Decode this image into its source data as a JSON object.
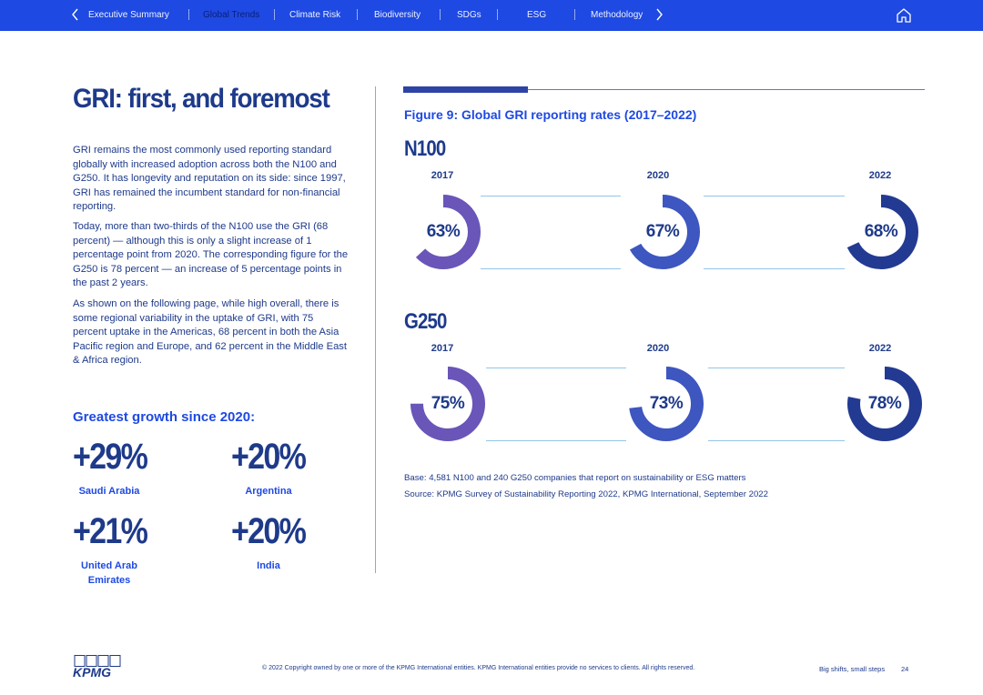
{
  "nav": {
    "items": [
      {
        "label": "Executive Summary"
      },
      {
        "label": "Global Trends",
        "active": true
      },
      {
        "label": "Climate Risk"
      },
      {
        "label": "Biodiversity"
      },
      {
        "label": "SDGs"
      },
      {
        "label": "ESG"
      },
      {
        "label": "Methodology"
      }
    ],
    "bg_color": "#1e49e2"
  },
  "left": {
    "heading": "GRI: first, and foremost",
    "paragraphs": [
      "GRI remains the most commonly used reporting standard globally with increased adoption across both the N100 and G250. It has longevity and reputation on its side: since 1997, GRI has remained the incumbent standard for non-financial reporting.",
      "Today, more than two-thirds of the N100 use the GRI (68 percent) — although this is only a slight increase of 1 percentage point from 2020. The corresponding figure for the G250 is 78 percent — an increase of 5 percentage points in the past 2 years.",
      "As shown on the following page, while high overall, there is some regional variability in the uptake of GRI, with 75 percent uptake in the Americas, 68 percent in both the Asia Pacific region and Europe, and 62 percent in the Middle East & Africa region."
    ],
    "growth_title": "Greatest growth since 2020:",
    "growth": [
      {
        "value": "+29%",
        "label": "Saudi Arabia"
      },
      {
        "value": "+20%",
        "label": "Argentina"
      },
      {
        "value": "+21%",
        "label": "United Arab Emirates"
      },
      {
        "value": "+20%",
        "label": "India"
      }
    ]
  },
  "figure": {
    "title": "Figure 9: Global GRI reporting rates (2017–2022)",
    "groups": [
      {
        "name": "N100",
        "items": [
          {
            "year": "2017",
            "value": 63,
            "label": "63%",
            "color": "#6a55b8"
          },
          {
            "year": "2020",
            "value": 67,
            "label": "67%",
            "color": "#3d56c0"
          },
          {
            "year": "2022",
            "value": 68,
            "label": "68%",
            "color": "#233a92"
          }
        ]
      },
      {
        "name": "G250",
        "items": [
          {
            "year": "2017",
            "value": 75,
            "label": "75%",
            "color": "#6a55b8"
          },
          {
            "year": "2020",
            "value": 73,
            "label": "73%",
            "color": "#3d56c0"
          },
          {
            "year": "2022",
            "value": 78,
            "label": "78%",
            "color": "#233a92"
          }
        ]
      }
    ],
    "base_note": "Base: 4,581 N100 and 240 G250 companies that report on sustainability or ESG matters",
    "source_note": "Source: KPMG Survey of Sustainability Reporting 2022, KPMG International, September 2022"
  },
  "footer": {
    "logo": "KPMG",
    "copyright": "© 2022 Copyright owned by one or more of the KPMG International entities. KPMG International entities provide no services to clients. All rights reserved.",
    "tagline": "Big shifts, small steps",
    "page_number": "24"
  }
}
